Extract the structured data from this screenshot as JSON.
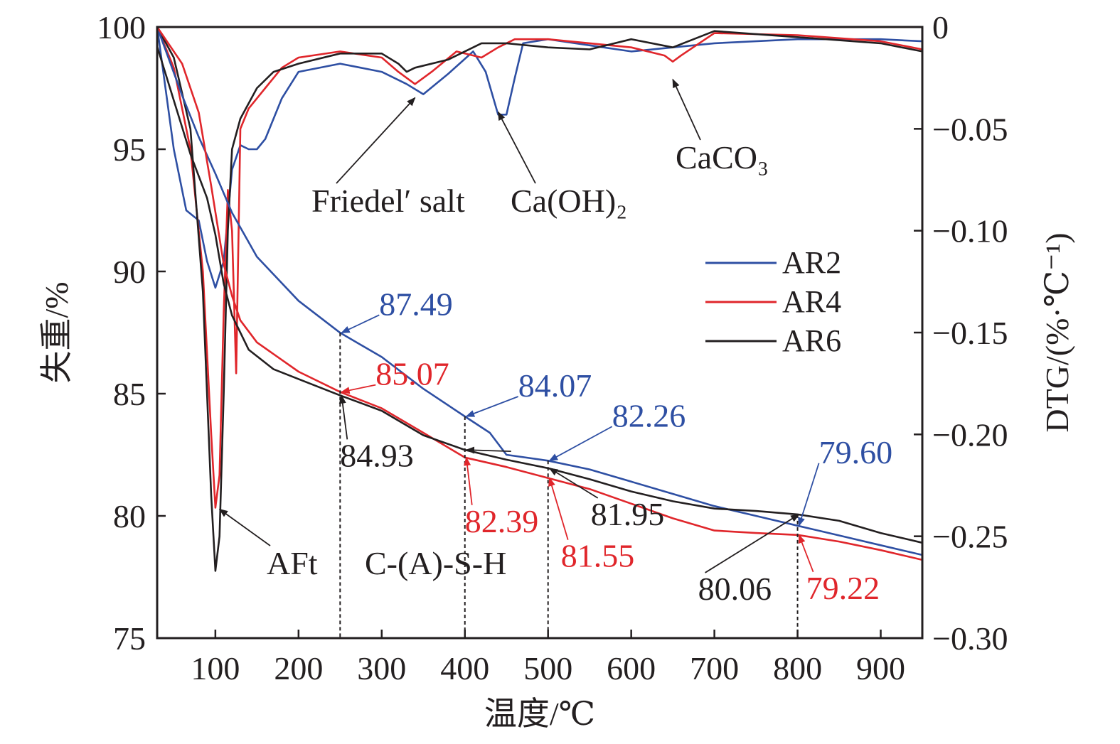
{
  "chart_data": {
    "type": "line",
    "xlabel": "温度/℃",
    "ylabel_left": "失重/%",
    "ylabel_right": "DTG/(%·℃⁻¹)",
    "x_range": [
      30,
      950
    ],
    "x_ticks": [
      100,
      200,
      300,
      400,
      500,
      600,
      700,
      800,
      900
    ],
    "y_left_range": [
      75,
      100
    ],
    "y_left_ticks": [
      75,
      80,
      85,
      90,
      95,
      100
    ],
    "y_right_range": [
      -0.3,
      0
    ],
    "y_right_ticks": [
      "0",
      "−0.05",
      "−0.10",
      "−0.15",
      "−0.20",
      "−0.25",
      "−0.30"
    ],
    "y_right_values": [
      0,
      -0.05,
      -0.1,
      -0.15,
      -0.2,
      -0.25,
      -0.3
    ],
    "legend": {
      "position": "right-middle",
      "entries": [
        "AR2",
        "AR4",
        "AR6"
      ]
    },
    "colors": {
      "AR2": "#2e4fa3",
      "AR4": "#e0262b",
      "AR6": "#231f20"
    },
    "series_tg": [
      {
        "name": "AR2",
        "axis": "left",
        "x": [
          30,
          60,
          80,
          100,
          120,
          150,
          200,
          250,
          300,
          350,
          400,
          430,
          450,
          500,
          550,
          600,
          650,
          700,
          750,
          800,
          850,
          900,
          950
        ],
        "y": [
          100,
          97.2,
          95.5,
          94.0,
          92.4,
          90.6,
          88.8,
          87.49,
          86.5,
          85.2,
          84.07,
          83.4,
          82.5,
          82.26,
          81.9,
          81.4,
          80.9,
          80.4,
          80.0,
          79.6,
          79.2,
          78.8,
          78.4
        ]
      },
      {
        "name": "AR4",
        "axis": "left",
        "x": [
          30,
          60,
          80,
          95,
          110,
          120,
          130,
          150,
          200,
          250,
          300,
          350,
          400,
          450,
          500,
          550,
          600,
          650,
          700,
          750,
          800,
          850,
          900,
          950
        ],
        "y": [
          100,
          98.5,
          96.5,
          93.5,
          90.3,
          89.0,
          88.0,
          87.1,
          85.9,
          85.07,
          84.4,
          83.4,
          82.39,
          82.0,
          81.55,
          81.1,
          80.5,
          79.9,
          79.4,
          79.3,
          79.22,
          78.95,
          78.6,
          78.2
        ]
      },
      {
        "name": "AR6",
        "axis": "left",
        "x": [
          30,
          50,
          70,
          90,
          100,
          110,
          120,
          140,
          170,
          200,
          250,
          300,
          350,
          400,
          450,
          500,
          550,
          600,
          650,
          700,
          750,
          800,
          850,
          900,
          950
        ],
        "y": [
          99.2,
          97.0,
          94.8,
          93.0,
          91.5,
          89.5,
          88.2,
          86.8,
          86.0,
          85.6,
          84.93,
          84.3,
          83.3,
          82.7,
          82.3,
          81.95,
          81.5,
          81.0,
          80.6,
          80.3,
          80.2,
          80.06,
          79.8,
          79.3,
          78.9
        ]
      }
    ],
    "series_dtg": [
      {
        "name": "AR2",
        "axis": "right",
        "x": [
          30,
          50,
          65,
          80,
          90,
          100,
          110,
          120,
          130,
          140,
          150,
          160,
          170,
          180,
          200,
          250,
          300,
          330,
          350,
          380,
          410,
          425,
          440,
          450,
          460,
          470,
          500,
          550,
          600,
          650,
          700,
          800,
          900,
          950
        ],
        "y": [
          0,
          -0.06,
          -0.09,
          -0.095,
          -0.115,
          -0.128,
          -0.115,
          -0.07,
          -0.058,
          -0.06,
          -0.06,
          -0.055,
          -0.045,
          -0.035,
          -0.022,
          -0.018,
          -0.022,
          -0.028,
          -0.033,
          -0.023,
          -0.012,
          -0.022,
          -0.043,
          -0.043,
          -0.025,
          -0.008,
          -0.006,
          -0.009,
          -0.012,
          -0.01,
          -0.008,
          -0.006,
          -0.006,
          -0.007
        ]
      },
      {
        "name": "AR4",
        "axis": "right",
        "x": [
          30,
          50,
          70,
          85,
          95,
          100,
          105,
          110,
          115,
          120,
          125,
          130,
          140,
          160,
          180,
          200,
          250,
          300,
          320,
          340,
          360,
          390,
          420,
          440,
          460,
          500,
          550,
          600,
          640,
          650,
          660,
          700,
          800,
          900,
          950
        ],
        "y": [
          0,
          -0.02,
          -0.06,
          -0.12,
          -0.2,
          -0.236,
          -0.22,
          -0.14,
          -0.08,
          -0.1,
          -0.17,
          -0.05,
          -0.04,
          -0.03,
          -0.02,
          -0.015,
          -0.012,
          -0.015,
          -0.022,
          -0.028,
          -0.022,
          -0.012,
          -0.015,
          -0.01,
          -0.006,
          -0.006,
          -0.008,
          -0.01,
          -0.014,
          -0.017,
          -0.014,
          -0.003,
          -0.004,
          -0.007,
          -0.011
        ]
      },
      {
        "name": "AR6",
        "axis": "right",
        "x": [
          30,
          50,
          70,
          85,
          95,
          100,
          105,
          110,
          115,
          120,
          130,
          150,
          170,
          200,
          250,
          300,
          320,
          330,
          340,
          380,
          420,
          450,
          500,
          550,
          600,
          650,
          700,
          800,
          900,
          950
        ],
        "y": [
          0,
          -0.015,
          -0.05,
          -0.13,
          -0.23,
          -0.267,
          -0.25,
          -0.18,
          -0.1,
          -0.06,
          -0.045,
          -0.03,
          -0.022,
          -0.018,
          -0.013,
          -0.013,
          -0.018,
          -0.022,
          -0.02,
          -0.016,
          -0.008,
          -0.008,
          -0.01,
          -0.011,
          -0.006,
          -0.01,
          -0.002,
          -0.005,
          -0.008,
          -0.012
        ]
      }
    ],
    "vertical_guides_x": [
      250,
      400,
      500,
      800
    ],
    "annotations": [
      {
        "id": "ar2-250",
        "text": "87.49",
        "color": "#2e4fa3",
        "point": [
          250,
          87.49
        ]
      },
      {
        "id": "ar2-400",
        "text": "84.07",
        "color": "#2e4fa3",
        "point": [
          400,
          84.07
        ]
      },
      {
        "id": "ar2-500",
        "text": "82.26",
        "color": "#2e4fa3",
        "point": [
          500,
          82.26
        ]
      },
      {
        "id": "ar2-800",
        "text": "79.60",
        "color": "#2e4fa3",
        "point": [
          800,
          79.6
        ]
      },
      {
        "id": "ar4-250",
        "text": "85.07",
        "color": "#e0262b",
        "point": [
          250,
          85.07
        ]
      },
      {
        "id": "ar4-400",
        "text": "82.39",
        "color": "#e0262b",
        "point": [
          400,
          82.39
        ]
      },
      {
        "id": "ar4-500",
        "text": "81.55",
        "color": "#e0262b",
        "point": [
          500,
          81.55
        ]
      },
      {
        "id": "ar4-800",
        "text": "79.22",
        "color": "#e0262b",
        "point": [
          800,
          79.22
        ]
      },
      {
        "id": "ar6-250",
        "text": "84.93",
        "color": "#231f20",
        "point": [
          250,
          84.93
        ]
      },
      {
        "id": "ar6-400",
        "text": "",
        "color": "#231f20",
        "point": [
          400,
          82.7
        ]
      },
      {
        "id": "ar6-500",
        "text": "81.95",
        "color": "#231f20",
        "point": [
          500,
          81.95
        ]
      },
      {
        "id": "ar6-800",
        "text": "80.06",
        "color": "#231f20",
        "point": [
          800,
          80.06
        ]
      }
    ],
    "phase_labels": [
      {
        "id": "aft",
        "text": "AFt",
        "point": [
          105,
          -0.235
        ]
      },
      {
        "id": "friedel",
        "text": "Friedel′ salt",
        "point": [
          340,
          -0.033
        ]
      },
      {
        "id": "caoh2",
        "text": "Ca(OH)₂",
        "point": [
          440,
          -0.04
        ]
      },
      {
        "id": "caco3",
        "text": "CaCO₃",
        "point": [
          650,
          -0.024
        ]
      }
    ],
    "region_labels": [
      {
        "id": "csh",
        "text": "C-(A)-S-H"
      }
    ]
  }
}
